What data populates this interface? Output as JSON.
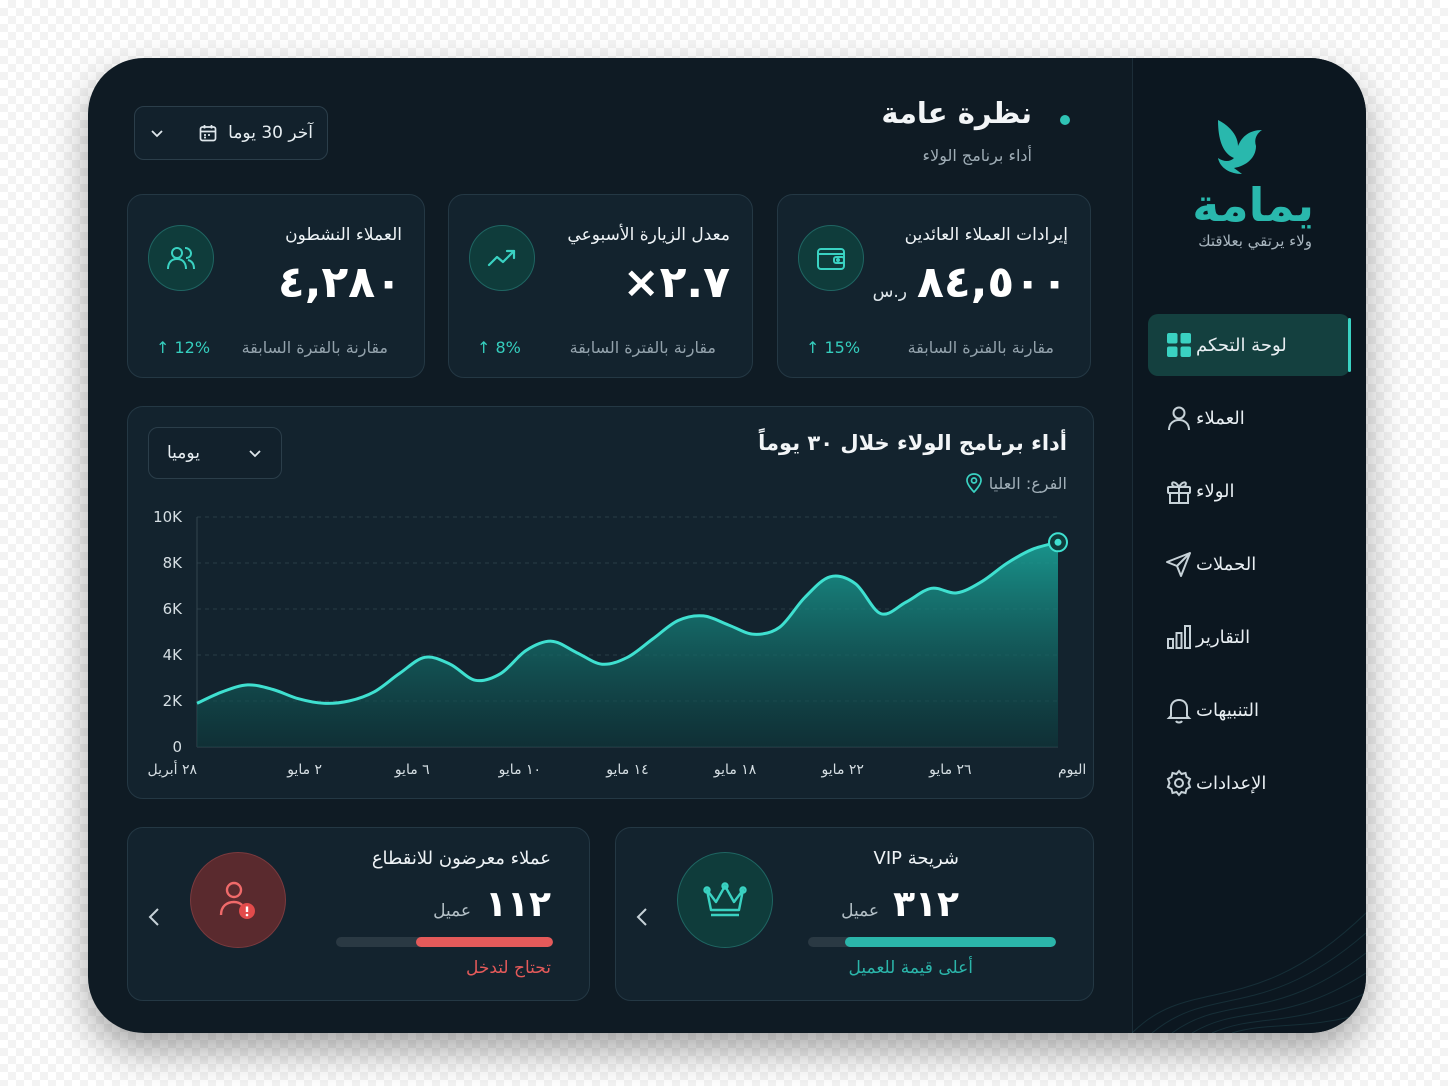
{
  "brand": {
    "name": "يمامة",
    "tagline": "ولاء يرتقي بعلاقتك",
    "accent": "#29b8ad"
  },
  "sidebar": {
    "items": [
      {
        "label": "لوحة التحكم",
        "icon": "grid-icon",
        "active": true
      },
      {
        "label": "العملاء",
        "icon": "user-icon",
        "active": false
      },
      {
        "label": "الولاء",
        "icon": "gift-icon",
        "active": false
      },
      {
        "label": "الحملات",
        "icon": "send-icon",
        "active": false
      },
      {
        "label": "التقارير",
        "icon": "bar-chart-icon",
        "active": false
      },
      {
        "label": "التنبيهات",
        "icon": "bell-icon",
        "active": false
      },
      {
        "label": "الإعدادات",
        "icon": "gear-icon",
        "active": false
      }
    ]
  },
  "header": {
    "title": "نظرة عامة",
    "subtitle": "أداء برنامج الولاء",
    "date_range": "آخر 30 يوما"
  },
  "kpis": [
    {
      "title": "إيرادات العملاء العائدين",
      "value": "٨٤,٥٠٠",
      "unit": "ر.س",
      "compare": "مقارنة بالفترة السابقة",
      "delta": "15%",
      "icon": "wallet-icon"
    },
    {
      "title": "معدل الزيارة الأسبوعي",
      "value": "٢.٧×",
      "unit": "",
      "compare": "مقارنة بالفترة السابقة",
      "delta": "8%",
      "icon": "trend-up-icon"
    },
    {
      "title": "العملاء النشطون",
      "value": "٤,٢٨٠",
      "unit": "",
      "compare": "مقارنة بالفترة السابقة",
      "delta": "12%",
      "icon": "users-icon"
    }
  ],
  "chart_card": {
    "title": "أداء برنامج الولاء خلال ٣٠ يوماً",
    "branch": "الفرع: العليا",
    "period": "يوميا"
  },
  "chart_data": {
    "type": "area",
    "x_tick_labels": [
      "٢٨ أبريل",
      "٢ مايو",
      "٦ مايو",
      "١٠ مايو",
      "١٤ مايو",
      "١٨ مايو",
      "٢٢ مايو",
      "٢٦ مايو",
      "اليوم"
    ],
    "y_tick_labels": [
      "0",
      "2K",
      "4K",
      "6K",
      "8K",
      "10K"
    ],
    "ylim": [
      0,
      10000
    ],
    "grid": true,
    "values": [
      1900,
      2400,
      2700,
      2500,
      2100,
      1900,
      2000,
      2400,
      3200,
      3900,
      3600,
      2900,
      3200,
      4200,
      4600,
      4100,
      3600,
      3900,
      4700,
      5500,
      5700,
      5300,
      4900,
      5200,
      6500,
      7400,
      7100,
      5800,
      6300,
      6900,
      6700,
      7200,
      8000,
      8600,
      8900
    ],
    "line_color": "#3fe0d0"
  },
  "segments": [
    {
      "title": "شريحة VIP",
      "count": "٣١٢",
      "unit": "عميل",
      "progress": 0.85,
      "note": "أعلى قيمة للعميل",
      "color": "#2bb5aa",
      "icon": "crown-icon"
    },
    {
      "title": "عملاء معرضون للانقطاع",
      "count": "١١٢",
      "unit": "عميل",
      "progress": 0.63,
      "note": "تحتاج لتدخل",
      "color": "#e45a5a",
      "icon": "user-alert-icon"
    }
  ]
}
